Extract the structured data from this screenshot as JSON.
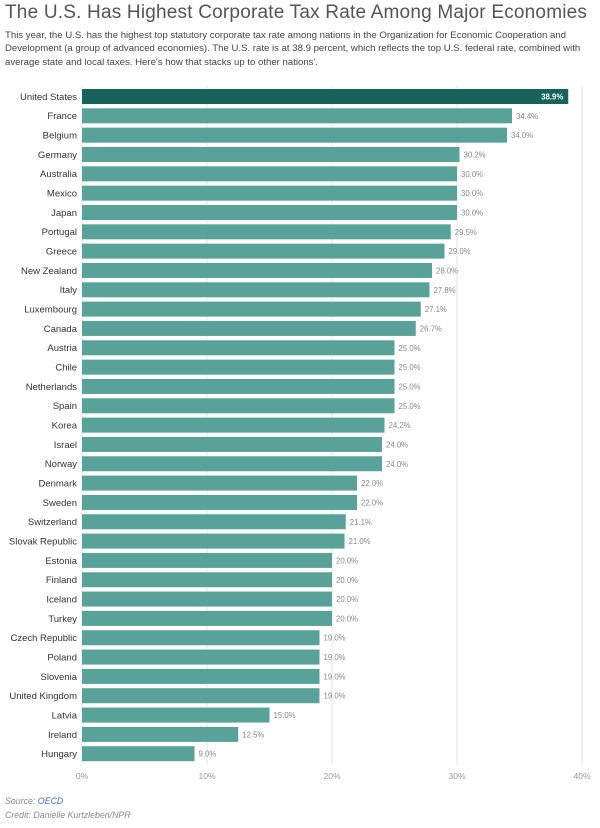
{
  "header": {
    "title": "The U.S. Has Highest Corporate Tax Rate Among Major Economies",
    "subtitle": "This year, the U.S. has the highest top statutory corporate tax rate among nations in the Organization for Economic Cooperation and Development (a group of advanced economies). The U.S. rate is at 38.9 percent, which reflects the top U.S. federal rate, combined with average state and local taxes. Here's how that stacks up to other nations'."
  },
  "footer": {
    "source_prefix": "Source:",
    "source_link": "OECD",
    "credit": "Credit: Danielle Kurtzleben/NPR"
  },
  "colors": {
    "highlight": "#17625a",
    "bar": "#58a29a"
  },
  "chart_data": {
    "type": "bar",
    "orientation": "horizontal",
    "categories": [
      "United States",
      "France",
      "Belgium",
      "Germany",
      "Australia",
      "Mexico",
      "Japan",
      "Portugal",
      "Greece",
      "New Zealand",
      "Italy",
      "Luxembourg",
      "Canada",
      "Austria",
      "Chile",
      "Netherlands",
      "Spain",
      "Korea",
      "Israel",
      "Norway",
      "Denmark",
      "Sweden",
      "Switzerland",
      "Slovak Republic",
      "Estonia",
      "Finland",
      "Iceland",
      "Turkey",
      "Czech Republic",
      "Poland",
      "Slovenia",
      "United Kingdom",
      "Latvia",
      "Ireland",
      "Hungary"
    ],
    "values": [
      38.9,
      34.4,
      34.0,
      30.2,
      30.0,
      30.0,
      30.0,
      29.5,
      29.0,
      28.0,
      27.8,
      27.1,
      26.7,
      25.0,
      25.0,
      25.0,
      25.0,
      24.2,
      24.0,
      24.0,
      22.0,
      22.0,
      21.1,
      21.0,
      20.0,
      20.0,
      20.0,
      20.0,
      19.0,
      19.0,
      19.0,
      19.0,
      15.0,
      12.5,
      9.0
    ],
    "value_labels": [
      "38.9%",
      "34.4%",
      "34.0%",
      "30.2%",
      "30.0%",
      "30.0%",
      "30.0%",
      "29.5%",
      "29.0%",
      "28.0%",
      "27.8%",
      "27.1%",
      "26.7%",
      "25.0%",
      "25.0%",
      "25.0%",
      "25.0%",
      "24.2%",
      "24.0%",
      "24.0%",
      "22.0%",
      "22.0%",
      "21.1%",
      "21.0%",
      "20.0%",
      "20.0%",
      "20.0%",
      "20.0%",
      "19.0%",
      "19.0%",
      "19.0%",
      "19.0%",
      "15.0%",
      "12.5%",
      "9.0%"
    ],
    "highlight_index": 0,
    "xlim": [
      0,
      40
    ],
    "xticks": [
      0,
      10,
      20,
      30,
      40
    ],
    "xtick_labels": [
      "0%",
      "10%",
      "20%",
      "30%",
      "40%"
    ],
    "grid": true
  }
}
